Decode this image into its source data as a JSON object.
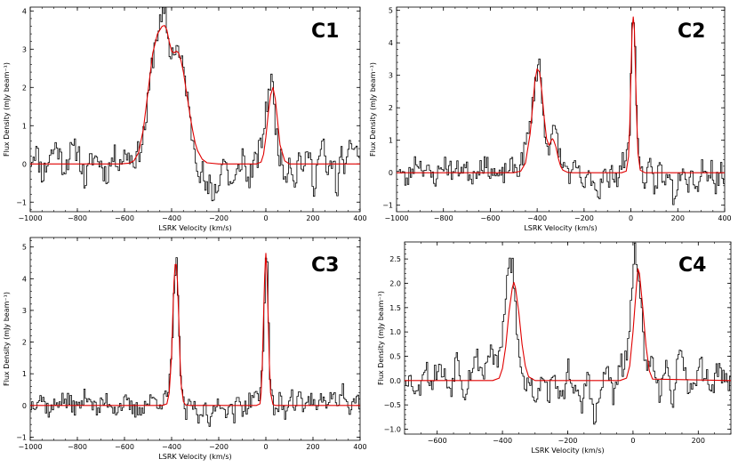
{
  "figure": {
    "colors": {
      "spectrum": "#000000",
      "fit": "#e00000",
      "axes": "#000000"
    }
  },
  "chart_data": [
    {
      "type": "line",
      "title": "C1",
      "xlabel": "LSRK Velocity (km/s)",
      "ylabel": "Flux Density (mJy beam⁻¹)",
      "xlim": [
        -1000,
        400
      ],
      "ylim": [
        -1.25,
        4.1
      ],
      "xticks": [
        -1000,
        -800,
        -600,
        -400,
        -200,
        0,
        200,
        400
      ],
      "yticks": [
        -1,
        0,
        1,
        2,
        3,
        4
      ],
      "series": [
        {
          "name": "spectrum",
          "style": "step",
          "noise": 0.32,
          "seed": 11,
          "x": [
            -1000,
            -980,
            -950,
            -920,
            -890,
            -860,
            -830,
            -800,
            -770,
            -740,
            -710,
            -680,
            -650,
            -620,
            -590,
            -570,
            -550,
            -530,
            -510,
            -490,
            -470,
            -455,
            -440,
            -430,
            -420,
            -412,
            -405,
            -398,
            -390,
            -380,
            -370,
            -360,
            -350,
            -340,
            -330,
            -320,
            -310,
            -300,
            -290,
            -280,
            -270,
            -260,
            -250,
            -240,
            -230,
            -220,
            -210,
            -200,
            -180,
            -160,
            -140,
            -120,
            -100,
            -80,
            -60,
            -40,
            -20,
            -10,
            0,
            10,
            20,
            25,
            30,
            40,
            50,
            60,
            80,
            100,
            120,
            140,
            160,
            180,
            200,
            220,
            240,
            260,
            280,
            300,
            320,
            340,
            360,
            380,
            400
          ],
          "y": [
            0.1,
            0.4,
            -0.3,
            0.2,
            0.5,
            -0.1,
            0.3,
            0.4,
            -0.5,
            0.2,
            0.1,
            -0.3,
            0.2,
            0.1,
            0.3,
            0.1,
            0.2,
            0.5,
            1.2,
            2.4,
            3.3,
            3.6,
            3.8,
            3.9,
            3.5,
            2.8,
            3.0,
            2.9,
            3.0,
            3.1,
            2.8,
            2.6,
            2.4,
            2.0,
            1.4,
            0.9,
            0.6,
            0.3,
            0.0,
            -0.3,
            -0.2,
            -0.6,
            -0.8,
            -0.5,
            -0.9,
            -0.6,
            -0.8,
            -0.3,
            0.2,
            -0.4,
            -0.6,
            -0.2,
            0.3,
            -0.5,
            -0.1,
            0.1,
            0.6,
            1.0,
            1.4,
            2.0,
            2.3,
            2.0,
            1.7,
            0.9,
            0.5,
            0.1,
            -0.3,
            0.2,
            -0.5,
            0.3,
            -0.2,
            0.4,
            -0.6,
            0.1,
            0.5,
            -0.4,
            0.2,
            -0.7,
            0.3,
            -0.2,
            0.6,
            0.4,
            0.1
          ]
        },
        {
          "name": "fit",
          "style": "line",
          "x": [
            -1000,
            -620,
            -580,
            -560,
            -540,
            -520,
            -500,
            -480,
            -460,
            -440,
            -430,
            -420,
            -410,
            -400,
            -390,
            -380,
            -370,
            -360,
            -350,
            -340,
            -330,
            -320,
            -310,
            -300,
            -290,
            -270,
            -250,
            -200,
            -40,
            -20,
            -10,
            0,
            10,
            20,
            30,
            40,
            50,
            60,
            80,
            100,
            400
          ],
          "y": [
            0,
            0,
            0.02,
            0.08,
            0.3,
            0.9,
            1.9,
            2.9,
            3.4,
            3.6,
            3.62,
            3.5,
            3.2,
            2.95,
            2.9,
            2.95,
            2.9,
            2.7,
            2.4,
            2.0,
            1.6,
            1.2,
            0.85,
            0.55,
            0.35,
            0.12,
            0.03,
            0,
            0,
            0.05,
            0.25,
            0.7,
            1.3,
            1.8,
            2.0,
            1.7,
            1.1,
            0.5,
            0.08,
            0,
            0
          ]
        }
      ]
    },
    {
      "type": "line",
      "title": "C2",
      "xlabel": "LSRK Velocity (km/s)",
      "ylabel": "Flux Density (mJy beam⁻¹)",
      "xlim": [
        -1000,
        400
      ],
      "ylim": [
        -1.2,
        5.1
      ],
      "xticks": [
        -1000,
        -800,
        -600,
        -400,
        -200,
        0,
        200,
        400
      ],
      "yticks": [
        -1,
        0,
        1,
        2,
        3,
        4,
        5
      ],
      "series": [
        {
          "name": "spectrum",
          "style": "step",
          "noise": 0.3,
          "seed": 23,
          "x": [
            -1000,
            -960,
            -920,
            -880,
            -840,
            -800,
            -760,
            -720,
            -680,
            -640,
            -600,
            -560,
            -520,
            -480,
            -460,
            -440,
            -420,
            -410,
            -400,
            -395,
            -390,
            -385,
            -380,
            -370,
            -360,
            -350,
            -340,
            -330,
            -320,
            -310,
            -300,
            -290,
            -280,
            -260,
            -240,
            -220,
            -200,
            -180,
            -160,
            -140,
            -120,
            -100,
            -80,
            -60,
            -40,
            -20,
            -10,
            -5,
            0,
            5,
            10,
            15,
            20,
            25,
            30,
            40,
            60,
            80,
            100,
            120,
            140,
            160,
            180,
            200,
            220,
            240,
            260,
            280,
            300,
            320,
            340,
            360,
            380,
            400
          ],
          "y": [
            0.2,
            -0.3,
            0.4,
            0.1,
            -0.2,
            0.3,
            0.0,
            0.2,
            -0.1,
            0.3,
            0.1,
            -0.2,
            0.2,
            0.1,
            0.6,
            1.2,
            2.2,
            2.9,
            3.3,
            3.5,
            3.1,
            2.6,
            2.0,
            1.3,
            0.9,
            0.8,
            1.0,
            1.4,
            1.2,
            0.7,
            0.3,
            0.1,
            0.3,
            -0.2,
            0.2,
            -0.1,
            -0.5,
            0.0,
            -0.3,
            -0.7,
            0.2,
            -0.4,
            0.1,
            -0.2,
            0.3,
            0.5,
            1.0,
            2.2,
            3.8,
            4.7,
            4.8,
            4.0,
            2.6,
            1.2,
            0.4,
            0.1,
            -0.3,
            0.2,
            -0.6,
            0.3,
            -0.5,
            0.2,
            -0.8,
            -0.2,
            0.4,
            -0.4,
            0.1,
            -0.6,
            0.3,
            -0.2,
            0.2,
            -0.4,
            0.1,
            -0.1
          ]
        },
        {
          "name": "fit",
          "style": "line",
          "x": [
            -1000,
            -500,
            -470,
            -450,
            -430,
            -420,
            -410,
            -400,
            -390,
            -380,
            -370,
            -360,
            -350,
            -345,
            -340,
            -335,
            -330,
            -320,
            -310,
            -300,
            -290,
            -270,
            -250,
            -40,
            -20,
            -10,
            -5,
            0,
            5,
            10,
            15,
            20,
            25,
            30,
            40,
            60,
            400
          ],
          "y": [
            0,
            0,
            0.05,
            0.3,
            1.2,
            2.0,
            2.8,
            3.2,
            3.1,
            2.5,
            1.7,
            1.05,
            0.85,
            0.9,
            1.0,
            1.05,
            1.0,
            0.8,
            0.45,
            0.2,
            0.08,
            0.01,
            0,
            0,
            0.05,
            0.5,
            1.5,
            3.0,
            4.4,
            4.8,
            4.4,
            3.0,
            1.6,
            0.6,
            0.08,
            0,
            0
          ]
        }
      ]
    },
    {
      "type": "line",
      "title": "C3",
      "xlabel": "LSRK Velocity (km/s)",
      "ylabel": "Flux Density (mJy beam⁻¹)",
      "xlim": [
        -1000,
        400
      ],
      "ylim": [
        -1.1,
        5.3
      ],
      "xticks": [
        -1000,
        -800,
        -600,
        -400,
        -200,
        0,
        200,
        400
      ],
      "yticks": [
        -1,
        0,
        1,
        2,
        3,
        4,
        5
      ],
      "series": [
        {
          "name": "spectrum",
          "style": "step",
          "noise": 0.28,
          "seed": 37,
          "x": [
            -1000,
            -960,
            -920,
            -880,
            -840,
            -800,
            -760,
            -720,
            -680,
            -640,
            -600,
            -560,
            -520,
            -480,
            -440,
            -420,
            -410,
            -400,
            -395,
            -390,
            -385,
            -380,
            -375,
            -370,
            -365,
            -360,
            -350,
            -340,
            -320,
            -300,
            -280,
            -260,
            -240,
            -220,
            -200,
            -180,
            -160,
            -140,
            -120,
            -100,
            -80,
            -60,
            -40,
            -25,
            -15,
            -10,
            -5,
            0,
            5,
            10,
            15,
            25,
            40,
            60,
            80,
            100,
            120,
            140,
            160,
            180,
            200,
            220,
            240,
            260,
            280,
            300,
            320,
            340,
            360,
            380,
            400
          ],
          "y": [
            0.0,
            0.3,
            -0.2,
            0.2,
            0.1,
            -0.1,
            0.4,
            -0.2,
            0.2,
            -0.1,
            0.1,
            -0.2,
            0.0,
            0.2,
            0.1,
            0.3,
            0.8,
            1.8,
            3.0,
            4.0,
            4.5,
            4.4,
            3.6,
            2.3,
            1.0,
            0.3,
            0.0,
            -0.3,
            0.1,
            -0.2,
            -0.5,
            0.2,
            -0.6,
            -0.2,
            0.3,
            -0.3,
            0.1,
            -0.4,
            0.2,
            -0.1,
            0.0,
            0.3,
            0.2,
            0.5,
            1.4,
            3.0,
            4.5,
            5.0,
            4.0,
            2.4,
            1.0,
            0.2,
            -0.4,
            0.3,
            -0.3,
            0.5,
            -0.1,
            0.4,
            -0.2,
            0.3,
            0.1,
            -0.3,
            0.5,
            -0.2,
            0.4,
            0.0,
            0.6,
            0.1,
            -0.2,
            0.3,
            0.0
          ]
        },
        {
          "name": "fit",
          "style": "line",
          "x": [
            -1000,
            -440,
            -420,
            -410,
            -400,
            -395,
            -390,
            -385,
            -380,
            -375,
            -370,
            -365,
            -360,
            -350,
            -340,
            -320,
            -40,
            -25,
            -20,
            -15,
            -10,
            -5,
            0,
            5,
            10,
            15,
            20,
            30,
            40,
            400
          ],
          "y": [
            0,
            0,
            0.05,
            0.4,
            1.6,
            2.8,
            3.9,
            4.45,
            4.45,
            3.9,
            2.8,
            1.6,
            0.7,
            0.12,
            0.01,
            0,
            0,
            0.05,
            0.4,
            1.3,
            2.8,
            4.1,
            4.8,
            4.1,
            2.8,
            1.3,
            0.4,
            0.03,
            0,
            0
          ]
        }
      ]
    },
    {
      "type": "line",
      "title": "C4",
      "xlabel": "LSRK Velocity (km/s)",
      "ylabel": "Flux Density (mJy beam⁻¹)",
      "xlim": [
        -700,
        300
      ],
      "ylim": [
        -1.1,
        2.85
      ],
      "xticks": [
        -600,
        -400,
        -200,
        0,
        200
      ],
      "yticks": [
        -1.0,
        -0.5,
        0.0,
        0.5,
        1.0,
        1.5,
        2.0,
        2.5
      ],
      "series": [
        {
          "name": "spectrum",
          "style": "step",
          "noise": 0.22,
          "seed": 53,
          "x": [
            -700,
            -680,
            -660,
            -640,
            -620,
            -600,
            -580,
            -560,
            -540,
            -520,
            -500,
            -480,
            -460,
            -440,
            -420,
            -410,
            -400,
            -390,
            -380,
            -375,
            -370,
            -365,
            -360,
            -355,
            -350,
            -340,
            -330,
            -320,
            -300,
            -280,
            -260,
            -240,
            -220,
            -200,
            -180,
            -160,
            -140,
            -120,
            -100,
            -80,
            -60,
            -40,
            -30,
            -20,
            -10,
            0,
            5,
            10,
            15,
            20,
            25,
            30,
            40,
            60,
            80,
            100,
            120,
            140,
            160,
            180,
            200,
            220,
            240,
            260,
            280,
            300
          ],
          "y": [
            0.1,
            0.0,
            -0.3,
            0.4,
            -0.1,
            0.3,
            0.1,
            -0.2,
            0.6,
            -0.3,
            0.2,
            0.5,
            0.1,
            0.7,
            0.3,
            0.6,
            1.0,
            1.8,
            2.5,
            2.3,
            2.4,
            1.8,
            1.3,
            0.8,
            0.4,
            0.1,
            -0.2,
            0.1,
            -0.4,
            0.2,
            -0.3,
            0.1,
            -0.5,
            0.3,
            -0.2,
            -0.6,
            0.2,
            -0.9,
            -0.2,
            0.3,
            -0.4,
            0.4,
            0.2,
            0.6,
            1.3,
            2.2,
            2.7,
            2.5,
            2.3,
            2.0,
            1.4,
            0.7,
            0.2,
            0.5,
            -0.3,
            0.2,
            -0.4,
            0.6,
            0.0,
            -0.3,
            0.4,
            0.1,
            -0.2,
            0.3,
            0.0,
            -0.1
          ]
        },
        {
          "name": "fit",
          "style": "line",
          "x": [
            -700,
            -430,
            -410,
            -400,
            -390,
            -380,
            -370,
            -365,
            -360,
            -350,
            -340,
            -330,
            -320,
            -300,
            -40,
            -20,
            -10,
            0,
            10,
            15,
            20,
            30,
            40,
            50,
            60,
            300
          ],
          "y": [
            0,
            0,
            0.05,
            0.25,
            0.7,
            1.4,
            1.9,
            2.02,
            1.9,
            1.4,
            0.75,
            0.3,
            0.08,
            0,
            0,
            0.05,
            0.3,
            1.0,
            1.9,
            2.3,
            2.2,
            1.5,
            0.7,
            0.2,
            0.03,
            0
          ]
        }
      ]
    }
  ]
}
